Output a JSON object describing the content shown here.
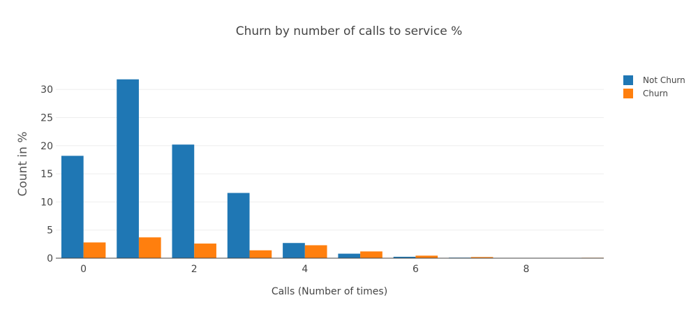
{
  "chart_data": {
    "type": "bar",
    "title": "Churn by number of calls to service %",
    "xlabel": "Calls (Number of times)",
    "ylabel": "Count in %",
    "x": [
      0,
      1,
      2,
      3,
      4,
      5,
      6,
      7,
      8,
      9
    ],
    "xticks": [
      0,
      2,
      4,
      6,
      8
    ],
    "yticks": [
      0,
      5,
      10,
      15,
      20,
      25,
      30
    ],
    "xlim": [
      -0.5,
      9.4
    ],
    "ylim": [
      0,
      33.5
    ],
    "grid": true,
    "legend_position": "top-right",
    "series": [
      {
        "name": "Not Churn",
        "color": "#1f77b4",
        "values": [
          18.2,
          31.8,
          20.2,
          11.6,
          2.7,
          0.8,
          0.25,
          0.1,
          0.05,
          0.02
        ]
      },
      {
        "name": "Churn",
        "color": "#ff7f0e",
        "values": [
          2.8,
          3.7,
          2.6,
          1.4,
          2.3,
          1.2,
          0.45,
          0.2,
          0.05,
          0.08
        ]
      }
    ]
  }
}
